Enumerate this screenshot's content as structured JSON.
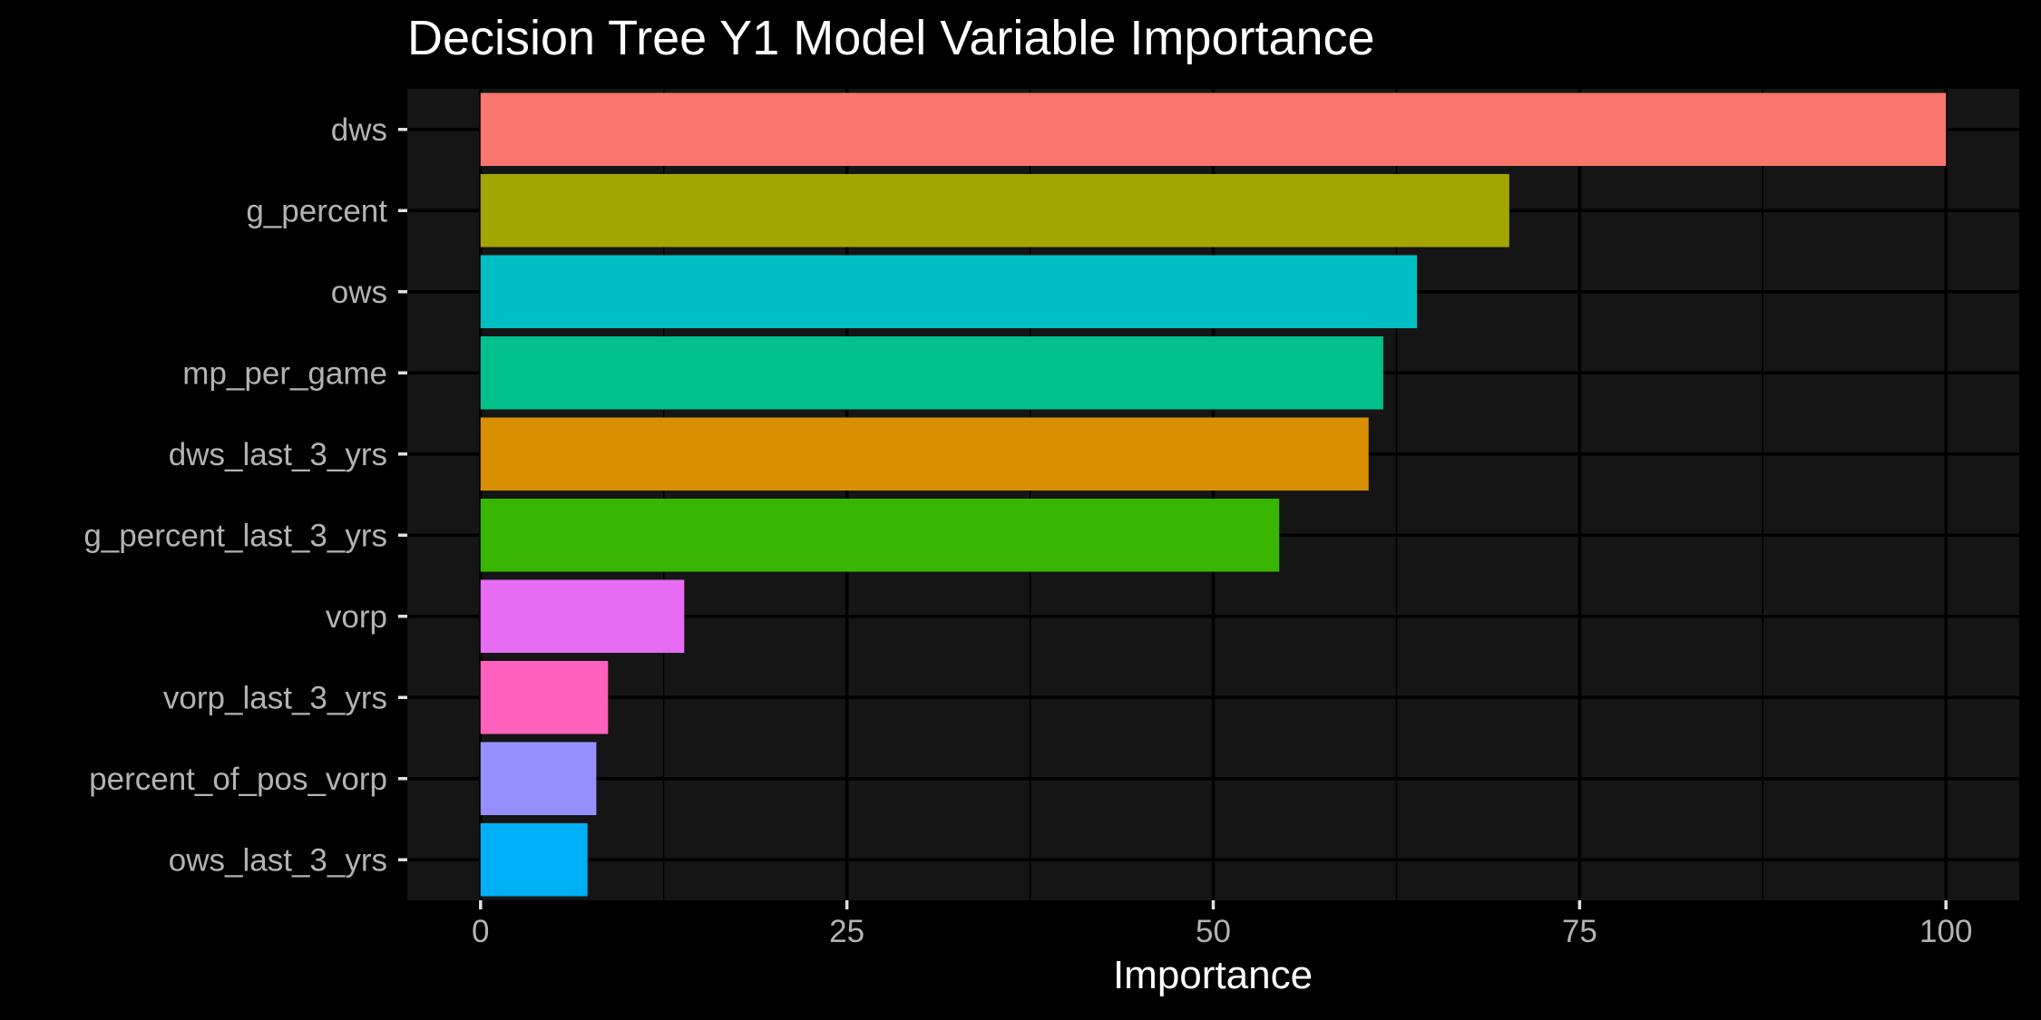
{
  "chart_data": {
    "type": "bar",
    "orientation": "horizontal",
    "title": "Decision Tree Y1 Model Variable Importance",
    "xlabel": "Importance",
    "ylabel": "",
    "xlim": [
      -5,
      105
    ],
    "xticks": [
      0,
      25,
      50,
      75,
      100
    ],
    "grid": true,
    "legend": "none",
    "background": "#000000",
    "panel_background": "#151515",
    "categories": [
      "dws",
      "g_percent",
      "ows",
      "mp_per_game",
      "dws_last_3_yrs",
      "g_percent_last_3_yrs",
      "vorp",
      "vorp_last_3_yrs",
      "percent_of_pos_vorp",
      "ows_last_3_yrs"
    ],
    "values": [
      100,
      70.2,
      63.9,
      61.6,
      60.6,
      54.5,
      13.9,
      8.7,
      7.9,
      7.3
    ],
    "colors": [
      "#F8766D",
      "#A3A500",
      "#00BFC4",
      "#00C08B",
      "#D89000",
      "#39B600",
      "#E76BF3",
      "#FF62BC",
      "#9590FF",
      "#00B0F6"
    ]
  }
}
